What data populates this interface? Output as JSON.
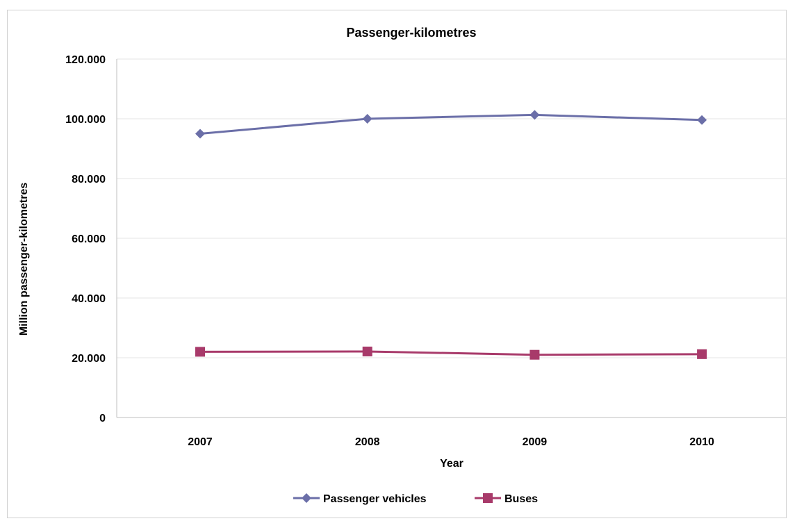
{
  "chart_data": {
    "type": "line",
    "title": "Passenger-kilometres",
    "xlabel": "Year",
    "ylabel": "Million passenger-kilometres",
    "categories": [
      "2007",
      "2008",
      "2009",
      "2010"
    ],
    "ylim": [
      0,
      120000
    ],
    "yticks": [
      0,
      20000,
      40000,
      60000,
      80000,
      100000,
      120000
    ],
    "ytick_labels": [
      "0",
      "20.000",
      "40.000",
      "60.000",
      "80.000",
      "100.000",
      "120.000"
    ],
    "grid": true,
    "legend_position": "bottom",
    "series": [
      {
        "name": "Passenger vehicles",
        "values": [
          95000,
          100000,
          101300,
          99600
        ],
        "color": "#6b6fa8",
        "marker": "diamond"
      },
      {
        "name": "Buses",
        "values": [
          22000,
          22100,
          21000,
          21200
        ],
        "color": "#a83a6a",
        "marker": "square"
      }
    ]
  }
}
